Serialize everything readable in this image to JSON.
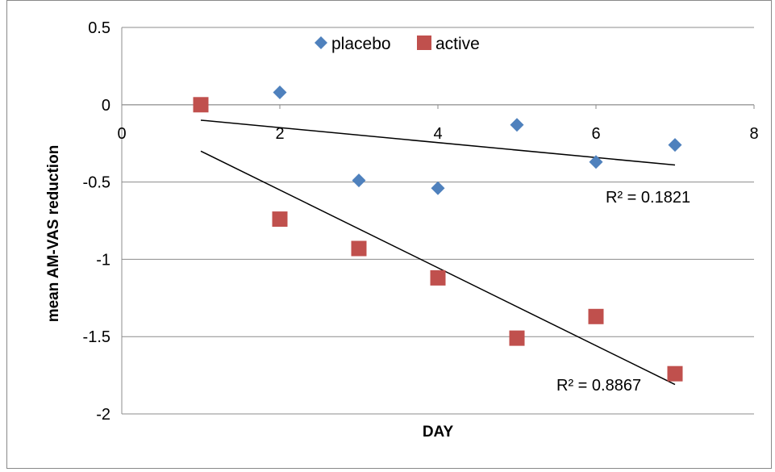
{
  "chart_data": {
    "type": "scatter",
    "title": "",
    "xlabel": "DAY",
    "ylabel": "mean AM-VAS reduction",
    "xlim": [
      0,
      8
    ],
    "ylim": [
      -2,
      0.5
    ],
    "x_ticks": [
      "0",
      "2",
      "4",
      "6",
      "8"
    ],
    "y_ticks": [
      "0.5",
      "0",
      "-0.5",
      "-1",
      "-1.5",
      "-2"
    ],
    "grid": "horizontal",
    "legend_position": "top",
    "series": [
      {
        "name": "placebo",
        "marker": "diamond",
        "color": "#4F81BD",
        "x": [
          2,
          3,
          4,
          5,
          6,
          7
        ],
        "y": [
          0.08,
          -0.49,
          -0.54,
          -0.13,
          -0.37,
          -0.26
        ],
        "trendline": {
          "x": [
            1,
            7
          ],
          "y": [
            -0.1,
            -0.39
          ],
          "label": "R² = 0.1821"
        }
      },
      {
        "name": "active",
        "marker": "square",
        "color": "#C0504D",
        "x": [
          1,
          2,
          3,
          4,
          5,
          6,
          7
        ],
        "y": [
          0.0,
          -0.74,
          -0.93,
          -1.12,
          -1.51,
          -1.37,
          -1.74
        ],
        "trendline": {
          "x": [
            1,
            7
          ],
          "y": [
            -0.3,
            -1.81
          ],
          "label": "R² = 0.8867"
        }
      }
    ]
  }
}
